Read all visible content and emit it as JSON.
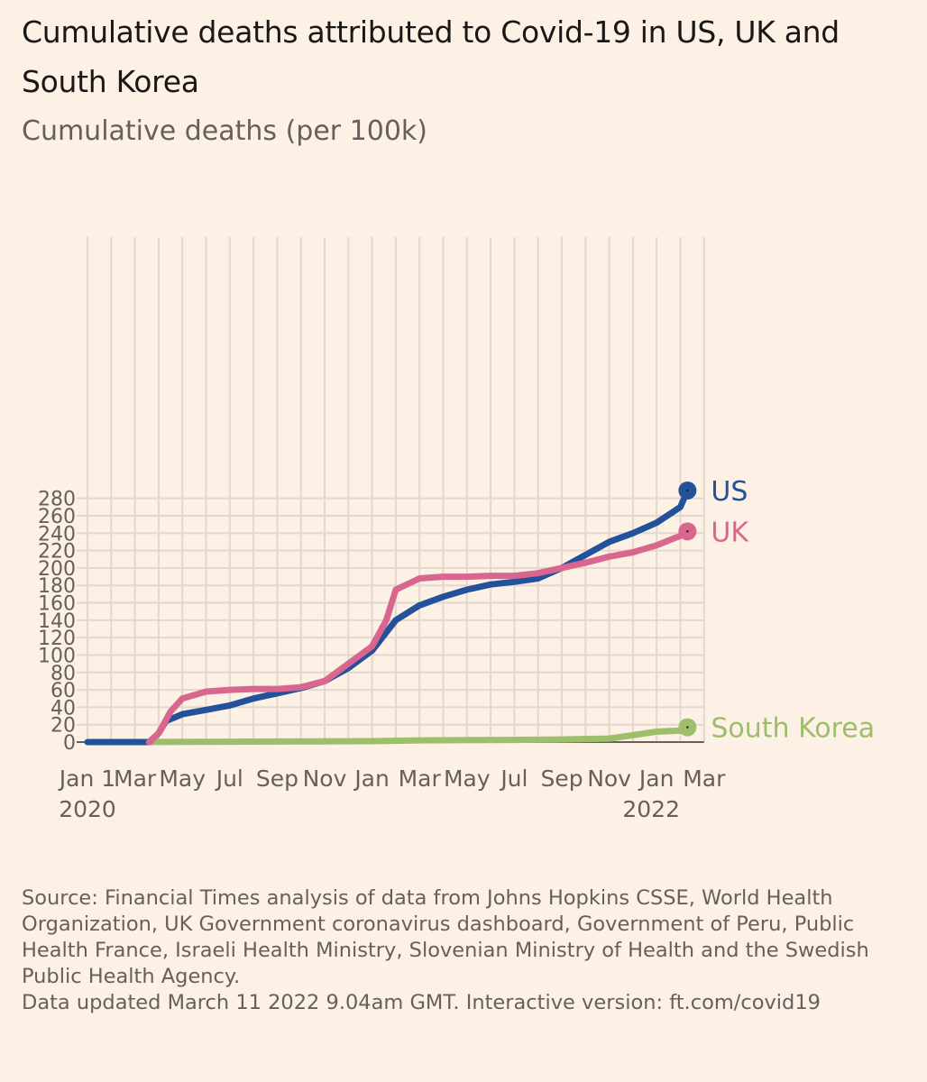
{
  "title": "Cumulative deaths attributed to Covid-19 in US, UK and South Korea",
  "subtitle": "Cumulative deaths (per 100k)",
  "source": "Source: Financial Times analysis of data from Johns Hopkins CSSE, World Health Organization, UK Government coronavirus dashboard, Government of Peru, Public Health France, Israeli Health Ministry, Slovenian Ministry of Health and the Swedish Public Health Agency.",
  "updated": "Data updated March 11 2022 9.04am GMT. Interactive version: ft.com/covid19",
  "chart_data": {
    "type": "line",
    "title": "Cumulative deaths attributed to Covid-19 in US, UK and South Korea",
    "ylabel": "Cumulative deaths (per 100k)",
    "xlabel": "",
    "x_unit": "months since Jan 2020",
    "xlim": [
      0,
      26
    ],
    "ylim": [
      0,
      290
    ],
    "grid": true,
    "legend": "right-end labels",
    "y_ticks": [
      0,
      20,
      40,
      60,
      80,
      100,
      120,
      140,
      160,
      180,
      200,
      220,
      240,
      260,
      280
    ],
    "x_ticks": [
      {
        "m": 0,
        "label": "Jan 1"
      },
      {
        "m": 2,
        "label": "Mar"
      },
      {
        "m": 4,
        "label": "May"
      },
      {
        "m": 6,
        "label": "Jul"
      },
      {
        "m": 8,
        "label": "Sep"
      },
      {
        "m": 10,
        "label": "Nov"
      },
      {
        "m": 12,
        "label": "Jan"
      },
      {
        "m": 14,
        "label": "Mar"
      },
      {
        "m": 16,
        "label": "May"
      },
      {
        "m": 18,
        "label": "Jul"
      },
      {
        "m": 20,
        "label": "Sep"
      },
      {
        "m": 22,
        "label": "Nov"
      },
      {
        "m": 24,
        "label": "Jan"
      },
      {
        "m": 26,
        "label": "Mar"
      }
    ],
    "year_labels": [
      {
        "m": 0,
        "label": "2020"
      },
      {
        "m": 24,
        "label": "2022"
      }
    ],
    "series": [
      {
        "name": "US",
        "color": "#23529a",
        "x": [
          0,
          1.2,
          2.6,
          3.0,
          3.3,
          4,
          5,
          6,
          7,
          8,
          9,
          10,
          11,
          12,
          13,
          14,
          15,
          16,
          17,
          18,
          19,
          20,
          21,
          22,
          23,
          24,
          25,
          25.3
        ],
        "y": [
          0,
          0,
          0,
          10,
          24,
          32,
          37,
          42,
          50,
          56,
          62,
          70,
          85,
          105,
          140,
          157,
          167,
          175,
          181,
          184,
          188,
          200,
          215,
          230,
          240,
          252,
          270,
          289
        ]
      },
      {
        "name": "UK",
        "color": "#d9668f",
        "x": [
          2.6,
          3.0,
          3.5,
          4,
          5,
          6,
          7,
          8,
          9,
          10,
          11,
          12,
          12.6,
          13,
          14,
          15,
          16,
          17,
          18,
          19,
          20,
          21,
          22,
          23,
          24,
          25,
          25.3
        ],
        "y": [
          0,
          10,
          35,
          50,
          58,
          60,
          61,
          61,
          63,
          70,
          90,
          110,
          140,
          175,
          188,
          190,
          190,
          191,
          191,
          194,
          200,
          206,
          213,
          218,
          226,
          237,
          242
        ]
      },
      {
        "name": "South Korea",
        "color": "#9dbe6a",
        "x": [
          1.2,
          7,
          12,
          14,
          18,
          20,
          22,
          23,
          24,
          25,
          25.3
        ],
        "y": [
          0,
          0.5,
          1,
          2,
          2.5,
          3,
          4,
          8,
          12,
          13,
          17
        ]
      }
    ]
  }
}
